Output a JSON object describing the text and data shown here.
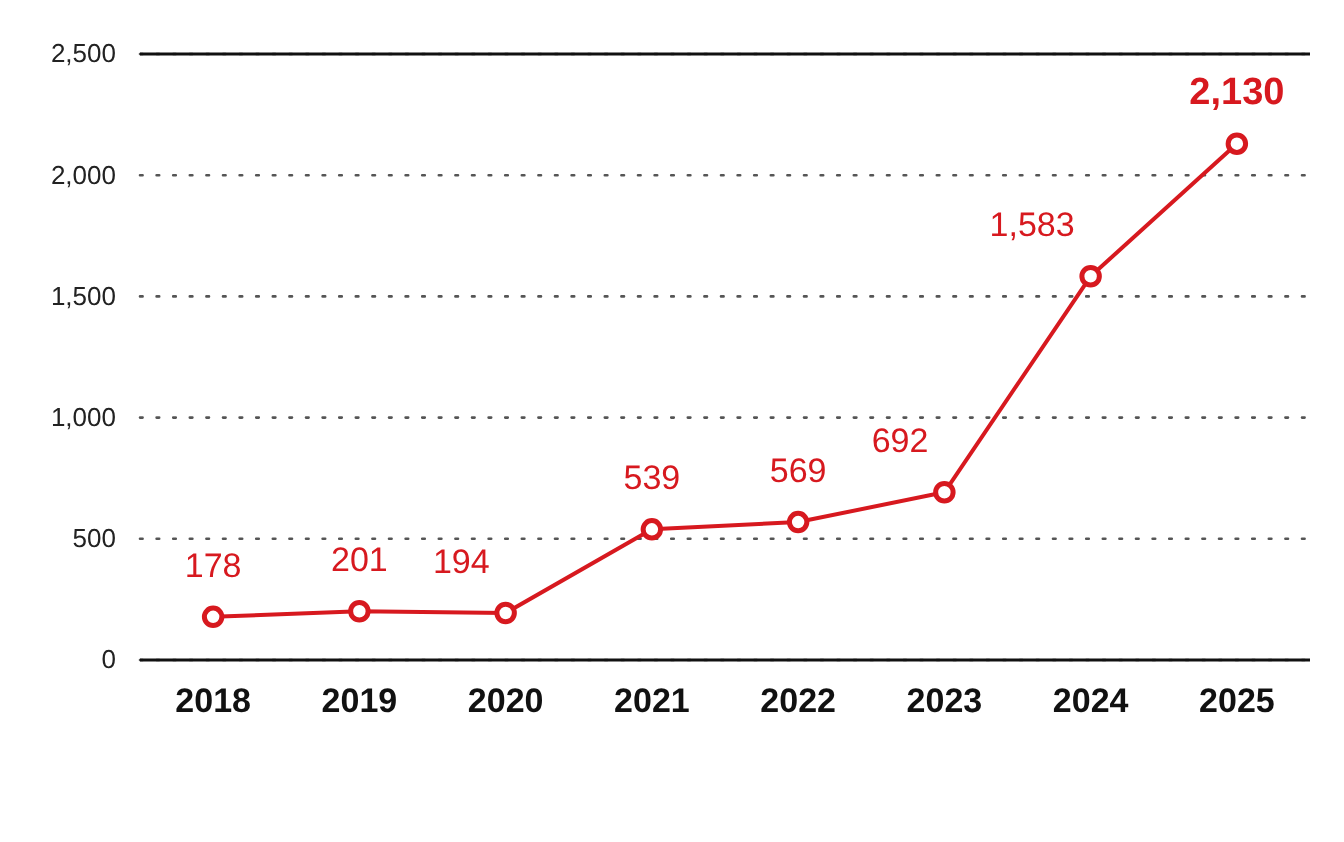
{
  "chart_data": {
    "type": "line",
    "categories": [
      "2018",
      "2019",
      "2020",
      "2021",
      "2022",
      "2023",
      "2024",
      "2025"
    ],
    "series": [
      {
        "color": "#d7191f",
        "values": [
          178,
          201,
          194,
          539,
          569,
          692,
          1583,
          2130
        ],
        "value_labels": [
          "178",
          "201",
          "194",
          "539",
          "569",
          "692",
          "1,583",
          "2,130"
        ]
      }
    ],
    "ylim": [
      0,
      2500
    ],
    "yticks": [
      0,
      500,
      {
        "value": 1000,
        "label": "1,000"
      },
      {
        "value": 1500,
        "label": "1,500"
      },
      {
        "value": 2000,
        "label": "2,000"
      },
      {
        "value": 2500,
        "label": "2,500"
      }
    ],
    "grid": "y",
    "marker": "circle",
    "line_style": "solid"
  }
}
